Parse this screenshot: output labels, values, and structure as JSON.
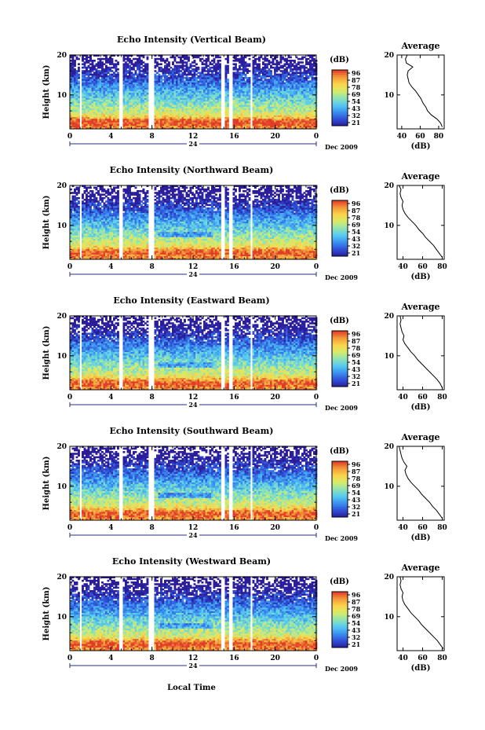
{
  "chart_data": {
    "type": "heatmap",
    "date_label": "Dec 2009",
    "day_label": "24",
    "x_title": "Local Time",
    "time_ticks": [
      "0",
      "4",
      "8",
      "12",
      "16",
      "20",
      "0"
    ],
    "time_range_hours": [
      0,
      24
    ],
    "height_range_km": [
      1.5,
      20
    ],
    "height_ticks": [
      "20",
      "10"
    ],
    "height_tick_values": [
      20,
      10
    ],
    "y_title": "Height (km)",
    "colorbar_unit": "(dB)",
    "colorbar_ticks": [
      "96",
      "87",
      "78",
      "69",
      "54",
      "43",
      "32",
      "21"
    ],
    "colormap": [
      "#2b1c9a",
      "#2f4fd6",
      "#3a8ff0",
      "#56c9f2",
      "#8ee3b5",
      "#d6ec6a",
      "#fbd54a",
      "#f39a3b",
      "#e03c28"
    ],
    "data_gaps_hours": [
      [
        0.9,
        1.2
      ],
      [
        4.8,
        5.1
      ],
      [
        7.6,
        8.1
      ],
      [
        14.7,
        15.0
      ],
      [
        15.5,
        15.8
      ],
      [
        17.5,
        17.8
      ]
    ],
    "panels": [
      {
        "title": "Echo Intensity (Vertical Beam)",
        "profile_title": "Average",
        "profile_xlabel": "(dB)",
        "profile_xticks": [
          "40",
          "60",
          "80"
        ],
        "profile_xrange": [
          35,
          86
        ],
        "profile_xtick_values": [
          40,
          60,
          80
        ],
        "profile_yticks": [
          "20",
          "10"
        ],
        "profile_heights_km": [
          2,
          3,
          4,
          5,
          6,
          7,
          8,
          9,
          10,
          11,
          12,
          13,
          14,
          15,
          16,
          17,
          18,
          19,
          20
        ],
        "profile_values_db": [
          84,
          82,
          78,
          72,
          68,
          66,
          63,
          61,
          58,
          55,
          51,
          48,
          47,
          46,
          47,
          52,
          45,
          44,
          46
        ],
        "bright_band_intensity": 0.72
      },
      {
        "title": "Echo Intensity (Northward Beam)",
        "profile_title": "Average",
        "profile_xlabel": "(dB)",
        "profile_xticks": [
          "40",
          "60",
          "80"
        ],
        "profile_xrange": [
          34,
          82
        ],
        "profile_xtick_values": [
          40,
          60,
          80
        ],
        "profile_yticks": [
          "20",
          "10"
        ],
        "profile_heights_km": [
          2,
          3,
          4,
          5,
          6,
          7,
          8,
          9,
          10,
          11,
          12,
          13,
          14,
          15,
          16,
          17,
          18,
          19,
          20
        ],
        "profile_values_db": [
          80,
          77,
          74,
          71,
          67,
          63,
          60,
          56,
          53,
          49,
          45,
          42,
          40,
          39,
          40,
          38,
          37,
          38,
          36
        ],
        "bright_band_intensity": 0.64
      },
      {
        "title": "Echo Intensity (Eastward Beam)",
        "profile_title": "Average",
        "profile_xlabel": "(dB)",
        "profile_xticks": [
          "40",
          "60",
          "80"
        ],
        "profile_xrange": [
          34,
          82
        ],
        "profile_xtick_values": [
          40,
          60,
          80
        ],
        "profile_yticks": [
          "20",
          "10"
        ],
        "profile_heights_km": [
          2,
          3,
          4,
          5,
          6,
          7,
          8,
          9,
          10,
          11,
          12,
          13,
          14,
          15,
          16,
          17,
          18,
          19,
          20
        ],
        "profile_values_db": [
          80,
          78,
          75,
          71,
          67,
          63,
          59,
          55,
          52,
          48,
          45,
          42,
          40,
          41,
          39,
          38,
          37,
          38,
          37
        ],
        "bright_band_intensity": 0.62
      },
      {
        "title": "Echo Intensity (Southward Beam)",
        "profile_title": "Average",
        "profile_xlabel": "(dB)",
        "profile_xticks": [
          "40",
          "60",
          "80"
        ],
        "profile_xrange": [
          34,
          82
        ],
        "profile_xtick_values": [
          40,
          60,
          80
        ],
        "profile_yticks": [
          "20",
          "10"
        ],
        "profile_heights_km": [
          2,
          3,
          4,
          5,
          6,
          7,
          8,
          9,
          10,
          11,
          12,
          13,
          14,
          15,
          16,
          17,
          18,
          19,
          20
        ],
        "profile_values_db": [
          80,
          77,
          74,
          70,
          67,
          63,
          59,
          56,
          52,
          48,
          45,
          43,
          42,
          44,
          41,
          39,
          38,
          37,
          36
        ],
        "bright_band_intensity": 0.62
      },
      {
        "title": "Echo Intensity (Westward Beam)",
        "profile_title": "Average",
        "profile_xlabel": "(dB)",
        "profile_xticks": [
          "40",
          "60",
          "80"
        ],
        "profile_xrange": [
          34,
          82
        ],
        "profile_xtick_values": [
          40,
          60,
          80
        ],
        "profile_yticks": [
          "20",
          "10"
        ],
        "profile_heights_km": [
          2,
          3,
          4,
          5,
          6,
          7,
          8,
          9,
          10,
          11,
          12,
          13,
          14,
          15,
          16,
          17,
          18,
          19,
          20
        ],
        "profile_values_db": [
          81,
          78,
          75,
          71,
          67,
          63,
          59,
          56,
          52,
          48,
          45,
          42,
          40,
          39,
          40,
          38,
          37,
          38,
          37
        ],
        "bright_band_intensity": 0.66
      }
    ]
  }
}
